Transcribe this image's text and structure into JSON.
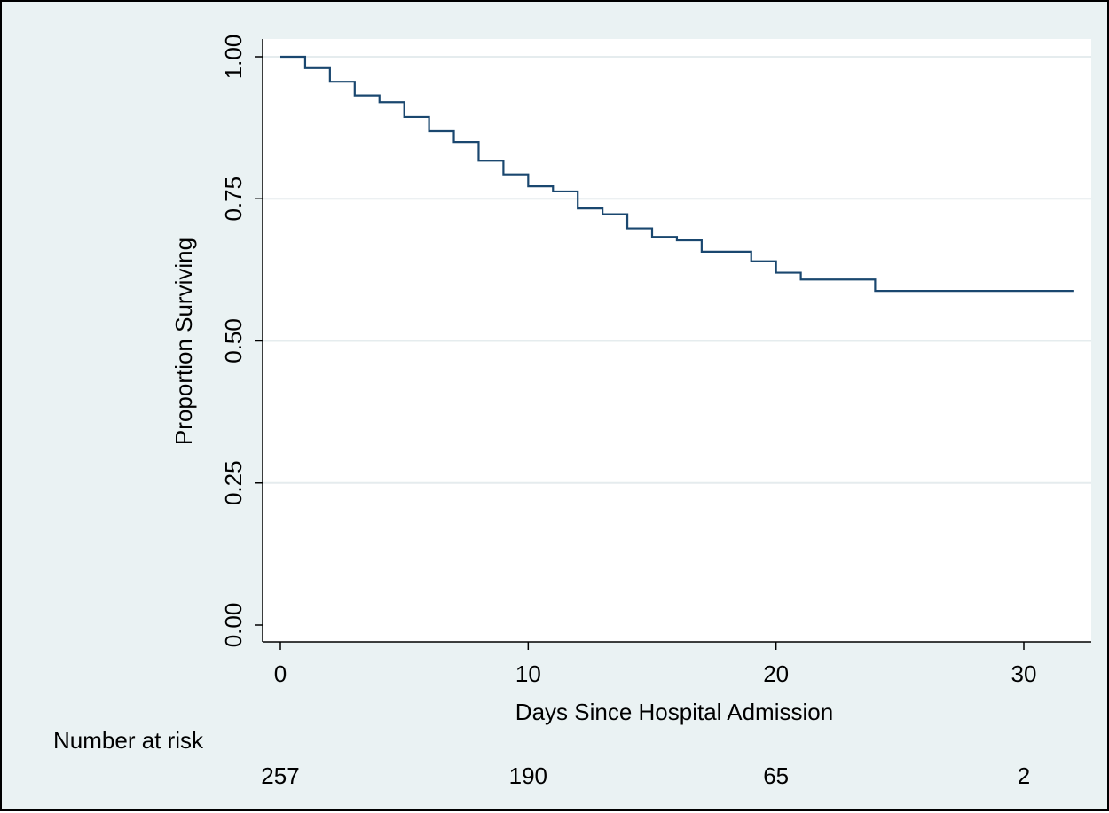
{
  "colors": {
    "background": "#eaf2f3",
    "plot_area": "#ffffff",
    "grid": "#e5ecee",
    "axis": "#000000",
    "line": "#1a476f"
  },
  "chart_data": {
    "type": "line",
    "style": "step",
    "title": "",
    "xlabel": "Days Since Hospital Admission",
    "ylabel": "Proportion Surviving",
    "xlim": [
      0,
      32
    ],
    "ylim": [
      0,
      1
    ],
    "x_ticks": [
      "0",
      "10",
      "20",
      "30"
    ],
    "y_ticks": [
      "0.00",
      "0.25",
      "0.50",
      "0.75",
      "1.00"
    ],
    "grid": "horizontal",
    "series": [
      {
        "x": [
          0,
          1,
          2,
          3,
          4,
          5,
          6,
          7,
          8,
          9,
          10,
          11,
          12,
          13,
          14,
          15,
          16,
          17,
          19,
          20,
          21,
          24,
          32
        ],
        "y": [
          1.0,
          0.98,
          0.956,
          0.932,
          0.92,
          0.894,
          0.869,
          0.85,
          0.817,
          0.793,
          0.772,
          0.763,
          0.733,
          0.723,
          0.698,
          0.683,
          0.677,
          0.657,
          0.64,
          0.62,
          0.608,
          0.588,
          0.588
        ]
      }
    ],
    "risk_table": {
      "label": "Number at risk",
      "x": [
        0,
        10,
        20,
        30
      ],
      "counts": [
        "257",
        "190",
        "65",
        "2"
      ]
    }
  }
}
